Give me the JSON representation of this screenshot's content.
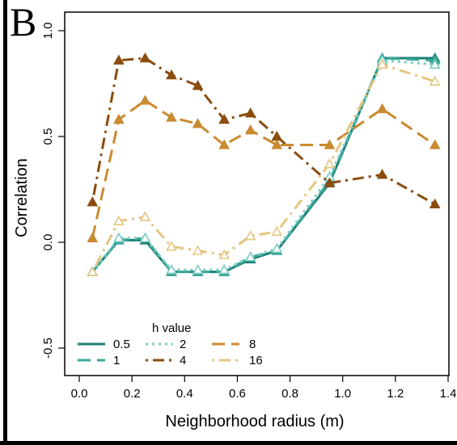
{
  "panel_label": "B",
  "chart_data": {
    "type": "line",
    "title": "",
    "xlabel": "Neighborhood radius (m)",
    "ylabel": "Correlation",
    "xlim": [
      0.0,
      1.4
    ],
    "ylim": [
      -0.5,
      1.0
    ],
    "x_ticks": [
      "0.0",
      "0.2",
      "0.4",
      "0.6",
      "0.8",
      "1.0",
      "1.2",
      "1.4"
    ],
    "y_ticks": [
      "-0.5",
      "0.0",
      "0.5",
      "1.0"
    ],
    "x_tick_values": [
      0.0,
      0.2,
      0.4,
      0.6,
      0.8,
      1.0,
      1.2,
      1.4
    ],
    "y_tick_values": [
      -0.5,
      0.0,
      0.5,
      1.0
    ],
    "grid": false,
    "legend_title": "h value",
    "legend_position": "bottom-left",
    "x": [
      0.05,
      0.15,
      0.25,
      0.35,
      0.45,
      0.55,
      0.65,
      0.75,
      0.95,
      1.15,
      1.35
    ],
    "series": [
      {
        "name": "0.5",
        "color": "#1b7f72",
        "dash": "solid",
        "marker": "filled",
        "values": [
          -0.14,
          0.01,
          0.01,
          -0.14,
          -0.14,
          -0.14,
          -0.08,
          -0.04,
          0.28,
          0.87,
          0.87
        ]
      },
      {
        "name": "1",
        "color": "#3aa899",
        "dash": "longdash",
        "marker": "filled",
        "values": [
          -0.14,
          0.01,
          0.02,
          -0.14,
          -0.14,
          -0.14,
          -0.07,
          -0.04,
          0.29,
          0.87,
          0.86
        ]
      },
      {
        "name": "2",
        "color": "#7fcdc4",
        "dash": "dotted",
        "marker": "open",
        "values": [
          -0.14,
          0.02,
          0.02,
          -0.13,
          -0.13,
          -0.13,
          -0.07,
          -0.03,
          0.31,
          0.86,
          0.84
        ]
      },
      {
        "name": "4",
        "color": "#8a4d0f",
        "dash": "dotdash",
        "marker": "filled",
        "values": [
          0.19,
          0.86,
          0.87,
          0.79,
          0.74,
          0.58,
          0.61,
          0.5,
          0.28,
          0.32,
          0.18
        ]
      },
      {
        "name": "8",
        "color": "#c98a30",
        "dash": "longdash",
        "marker": "filled",
        "values": [
          0.02,
          0.58,
          0.67,
          0.59,
          0.56,
          0.46,
          0.53,
          0.46,
          0.46,
          0.63,
          0.46
        ]
      },
      {
        "name": "16",
        "color": "#e6c580",
        "dash": "dotdash",
        "marker": "open",
        "values": [
          -0.14,
          0.1,
          0.12,
          -0.02,
          -0.04,
          -0.06,
          0.03,
          0.05,
          0.37,
          0.84,
          0.76
        ]
      }
    ]
  }
}
